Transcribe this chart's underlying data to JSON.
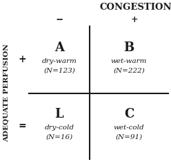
{
  "title": "CONGESTION",
  "ylabel": "ADEQUATE PERFUSION",
  "col_minus": "--",
  "col_plus": "+",
  "row_plus": "+",
  "row_minus": "=",
  "quad_A_label": "A",
  "quad_A_sub1": "dry-warm",
  "quad_A_sub2": "(N=123)",
  "quad_B_label": "B",
  "quad_B_sub1": "wet-warm",
  "quad_B_sub2": "(N=222)",
  "quad_L_label": "L",
  "quad_L_sub1": "dry-cold",
  "quad_L_sub2": "(N=16)",
  "quad_C_label": "C",
  "quad_C_sub1": "wet-cold",
  "quad_C_sub2": "(N=91)",
  "bg_color": "#ffffff",
  "text_color": "#1a1a1a",
  "line_color": "#1a1a1a",
  "figsize": [
    2.48,
    2.37
  ],
  "dpi": 100
}
